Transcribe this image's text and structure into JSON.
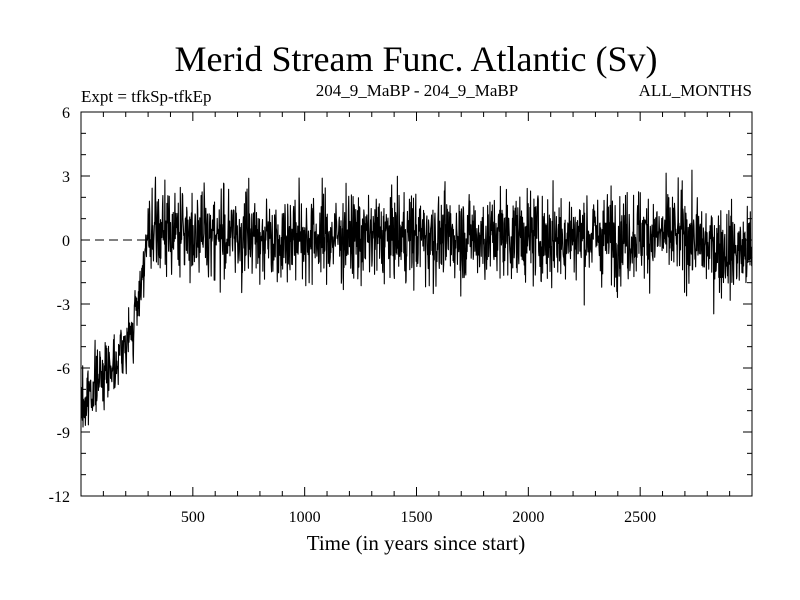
{
  "chart_data": {
    "type": "line",
    "title": "Merid Stream Func. Atlantic (Sv)",
    "subtitle_left": "Expt = tfkSp-tfkEp",
    "subtitle_center": "204_9_MaBP - 204_9_MaBP",
    "subtitle_right": "ALL_MONTHS",
    "xlabel": "Time (in years since start)",
    "ylabel": "",
    "xlim": [
      0,
      3000
    ],
    "ylim": [
      -12,
      6
    ],
    "xticks": [
      500,
      1000,
      1500,
      2000,
      2500
    ],
    "yticks": [
      6,
      3,
      0,
      -3,
      -6,
      -9,
      -12
    ],
    "reference_line": {
      "y": 0,
      "style": "dashed",
      "x_range": [
        0,
        300
      ]
    },
    "grid": false,
    "series": [
      {
        "color": "#000000",
        "x": [
          0,
          20,
          40,
          60,
          80,
          100,
          120,
          140,
          160,
          180,
          200,
          220,
          240,
          260,
          280,
          300,
          350,
          400,
          450,
          500,
          600,
          700,
          800,
          900,
          1000,
          1100,
          1200,
          1300,
          1400,
          1500,
          1600,
          1700,
          1800,
          1900,
          2000,
          2100,
          2200,
          2300,
          2400,
          2500,
          2600,
          2700,
          2800,
          2900,
          3000
        ],
        "values": [
          -7.5,
          -7.8,
          -7.0,
          -6.8,
          -6.5,
          -6.2,
          -6.0,
          -5.8,
          -5.5,
          -5.2,
          -5.0,
          -4.5,
          -3.8,
          -2.5,
          -1.0,
          0.0,
          0.3,
          0.5,
          0.3,
          0.4,
          0.3,
          0.2,
          0.2,
          0.1,
          0.2,
          0.1,
          0.2,
          0.1,
          0.2,
          0.2,
          0.1,
          0.2,
          0.1,
          0.3,
          0.2,
          0.1,
          0.2,
          0.2,
          0.1,
          0.3,
          0.2,
          0.2,
          -0.3,
          -0.5,
          -0.6
        ]
      }
    ]
  }
}
